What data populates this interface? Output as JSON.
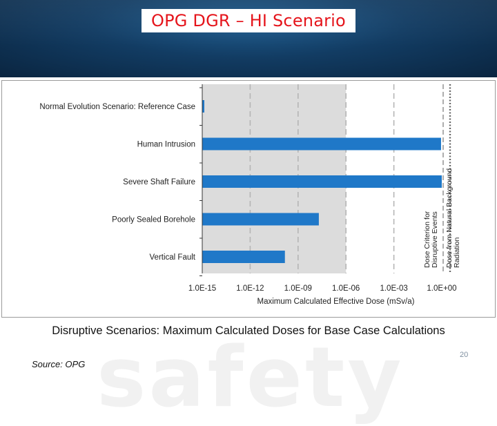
{
  "slide": {
    "title": "OPG DGR – HI Scenario",
    "caption": "Disruptive Scenarios: Maximum Calculated Doses for Base Case Calculations",
    "source": "Source: OPG",
    "page_number": "20",
    "watermark": "safety"
  },
  "colors": {
    "bar": "#1f78c8",
    "shaded_region": "#dcdcdc",
    "title": "#e5141b",
    "header_bg": "#123c63"
  },
  "chart_data": {
    "type": "bar",
    "orientation": "horizontal",
    "scale": "log",
    "xlabel": "Maximum Calculated Effective Dose (mSv/a)",
    "xlim": [
      1e-15,
      1
    ],
    "ticks": [
      {
        "value": 1e-15,
        "label": "1.0E-15"
      },
      {
        "value": 1e-12,
        "label": "1.0E-12"
      },
      {
        "value": 1e-09,
        "label": "1.0E-09"
      },
      {
        "value": 1e-06,
        "label": "1.0E-06"
      },
      {
        "value": 0.001,
        "label": "1.0E-03"
      },
      {
        "value": 1,
        "label": "1.0E+00"
      }
    ],
    "categories": [
      "Normal Evolution Scenario: Reference Case",
      "Human Intrusion",
      "Severe Shaft Failure",
      "Poorly Sealed Borehole",
      "Vertical Fault"
    ],
    "values": [
      1.3e-15,
      0.9,
      1.0,
      2e-08,
      1.5e-10
    ],
    "shaded_region": [
      1e-15,
      1e-06
    ],
    "grid": "dashed vertical",
    "reference_lines": [
      {
        "value": 1,
        "style": "dashed",
        "label": "Dose Criterion for Disruptive Events"
      },
      {
        "value": 1.8,
        "style": "dotted",
        "label": "Dose from Natural Background Radiation"
      }
    ]
  }
}
